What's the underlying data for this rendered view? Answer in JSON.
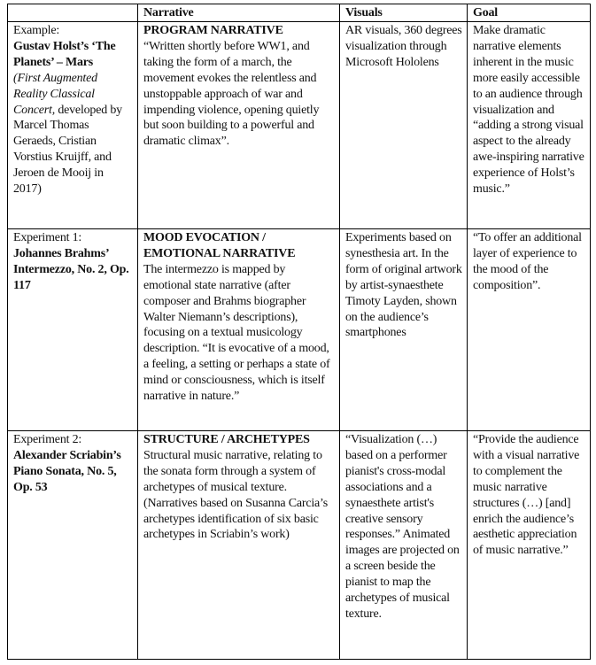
{
  "headers": [
    "",
    "Narrative",
    "Visuals",
    "Goal"
  ],
  "rows": [
    {
      "label_prefix": "Example:",
      "label_bold": "Gustav Holst’s ‘The Planets’ – Mars",
      "label_italic": "(First Augmented Reality Classical Concert,",
      "label_rest": " developed by Marcel Thomas Geraeds, Cristian Vorstius Kruijff, and Jeroen de Mooij in 2017)",
      "narrative_title": "PROGRAM NARRATIVE",
      "narrative_text": "“Written shortly before WW1, and taking the form of a march, the movement evokes the relentless and unstoppable approach of war and impending violence, opening quietly but soon building to a powerful and dramatic climax”.",
      "visuals": "AR visuals, 360 degrees visualization through Microsoft Hololens",
      "goal": "Make dramatic narrative elements inherent in the music more easily accessible to an audience through visualization and “adding a strong visual aspect to the already awe-inspiring narrative experience of Holst’s music.”"
    },
    {
      "label_prefix": "Experiment 1:",
      "label_bold": "Johannes Brahms’ Intermezzo, No. 2, Op. 117",
      "narrative_title": "MOOD EVOCATION / EMOTIONAL NARRATIVE",
      "narrative_text": "The intermezzo is mapped by emotional state narrative (after composer and Brahms biographer Walter Niemann’s descriptions), focusing on a textual musicology description. “It is evocative of a mood, a feeling, a setting or perhaps a state of mind or consciousness, which is itself narrative in nature.”",
      "visuals": "Experiments based on synesthesia art. In the form of original artwork by artist-synaesthete Timoty Layden, shown on the audience’s smartphones",
      "goal": "“To offer an additional layer of experience to the mood of the composition”."
    },
    {
      "label_prefix": "Experiment 2:",
      "label_bold": "Alexander Scriabin’s Piano Sonata, No. 5, Op. 53",
      "narrative_title": "STRUCTURE / ARCHETYPES",
      "narrative_text": "Structural music narrative, relating to the sonata form through a system of archetypes of musical texture. (Narratives based on Susanna Carcia’s archetypes identification of six basic archetypes in Scriabin’s work)",
      "visuals": "“Visualization (…) based on a performer pianist's cross-modal associations and a synaesthete artist's creative sensory responses.” Animated images are projected on a screen beside the pianist to map the archetypes of musical texture.",
      "goal": "“Provide the audience with a visual narrative to complement the music narrative structures (…) [and] enrich the audience’s aesthetic appreciation of music narrative.”"
    }
  ]
}
